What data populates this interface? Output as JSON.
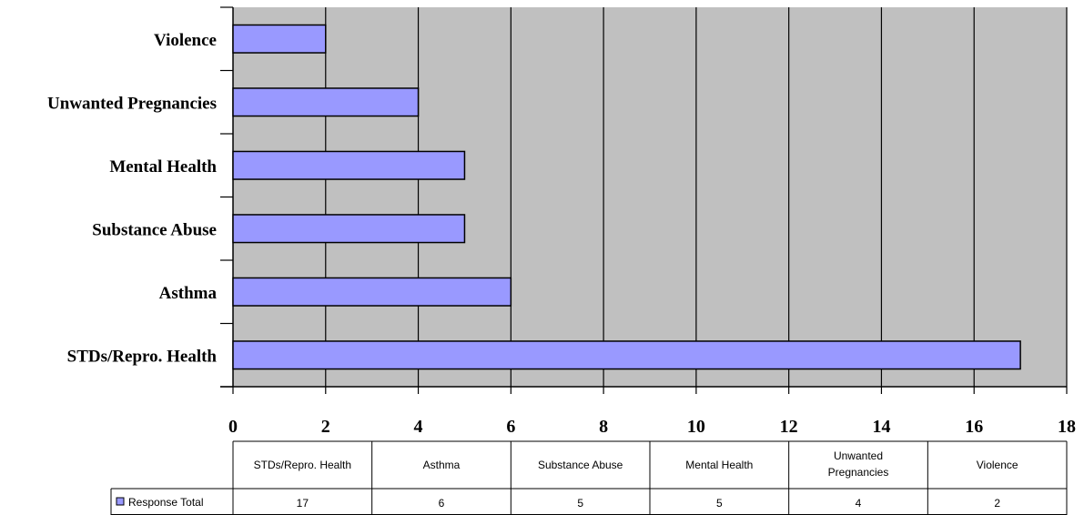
{
  "chart_data": {
    "type": "bar",
    "orientation": "horizontal",
    "categories": [
      "STDs/Repro. Health",
      "Asthma",
      "Substance Abuse",
      "Mental Health",
      "Unwanted Pregnancies",
      "Violence"
    ],
    "series": [
      {
        "name": "Response Total",
        "values": [
          17,
          6,
          5,
          5,
          4,
          2
        ]
      }
    ],
    "xlim": [
      0,
      18
    ],
    "x_ticks": [
      0,
      2,
      4,
      6,
      8,
      10,
      12,
      14,
      16,
      18
    ],
    "grid": true,
    "title": "",
    "xlabel": "",
    "ylabel": "",
    "legend": "data-table-left",
    "data_table": {
      "headers": [
        "STDs/Repro. Health",
        "Asthma",
        "Substance Abuse",
        "Mental Health",
        "Unwanted Pregnancies",
        "Violence"
      ],
      "row_label": "Response Total",
      "values": [
        "17",
        "6",
        "5",
        "5",
        "4",
        "2"
      ]
    },
    "colors": {
      "plot_background": "#c0c0c0",
      "bar_fill": "#9999ff",
      "bar_stroke": "#000000",
      "gridline": "#000000"
    }
  }
}
